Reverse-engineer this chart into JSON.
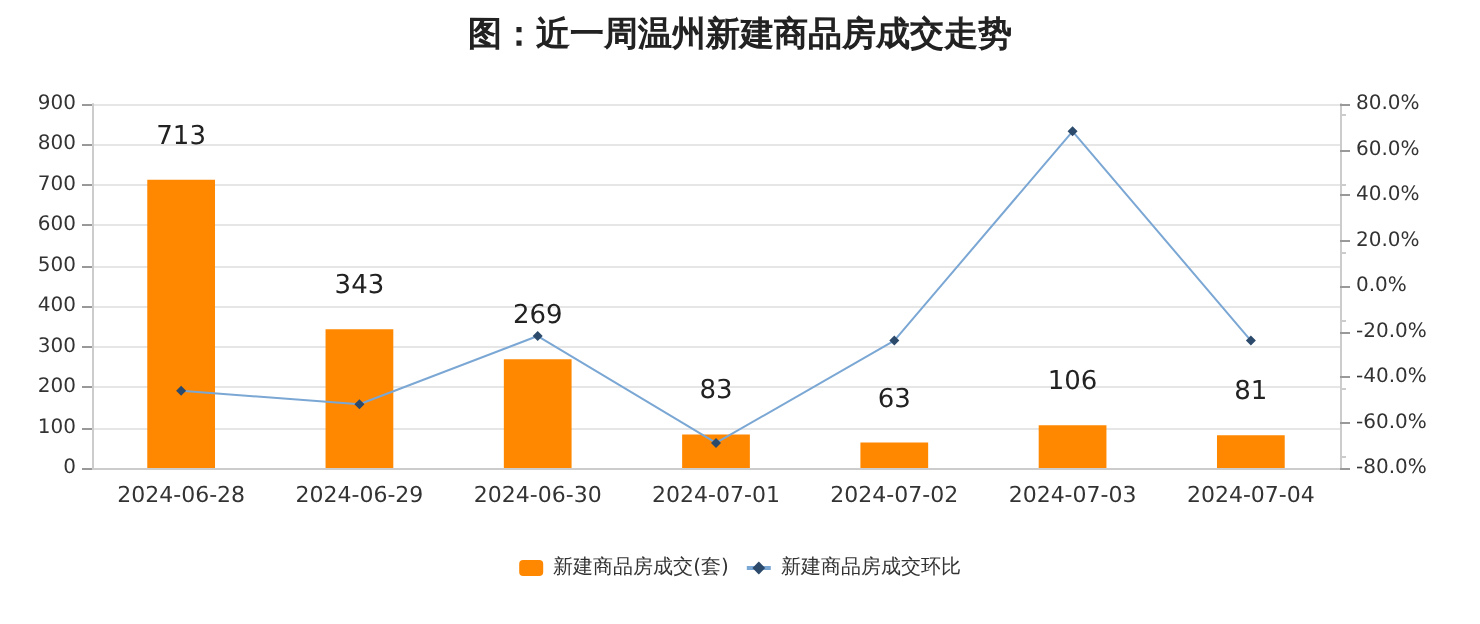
{
  "chart_data": {
    "type": "bar",
    "title": "图：近一周温州新建商品房成交走势",
    "categories": [
      "2024-06-28",
      "2024-06-29",
      "2024-06-30",
      "2024-07-01",
      "2024-07-02",
      "2024-07-03",
      "2024-07-04"
    ],
    "series": [
      {
        "name": "新建商品房成交(套)",
        "color": "#ff8800",
        "values": [
          713,
          343,
          269,
          83,
          63,
          106,
          81
        ],
        "data_labels": true
      },
      {
        "name": "新建商品房成交环比",
        "type": "line",
        "axis": "y2",
        "color": "#7ba7d4",
        "marker": "diamond",
        "values": [
          -46,
          -52,
          -22,
          -69,
          -24,
          68,
          -24
        ]
      }
    ],
    "ylim": [
      0,
      900
    ],
    "yticks": [
      0,
      100,
      200,
      300,
      400,
      500,
      600,
      700,
      800,
      900
    ],
    "y2lim": [
      -80,
      80
    ],
    "y2ticks": [
      {
        "value": -80,
        "label": "-80.0%"
      },
      {
        "value": -60,
        "label": "-60.0%"
      },
      {
        "value": -40,
        "label": "-40.0%"
      },
      {
        "value": -20,
        "label": "-20.0%"
      },
      {
        "value": 0,
        "label": "0.0%"
      },
      {
        "value": 20,
        "label": "20.0%"
      },
      {
        "value": 40,
        "label": "40.0%"
      },
      {
        "value": 60,
        "label": "60.0%"
      },
      {
        "value": 80,
        "label": "80.0%"
      }
    ],
    "grid": "y",
    "legend": "bottom"
  }
}
